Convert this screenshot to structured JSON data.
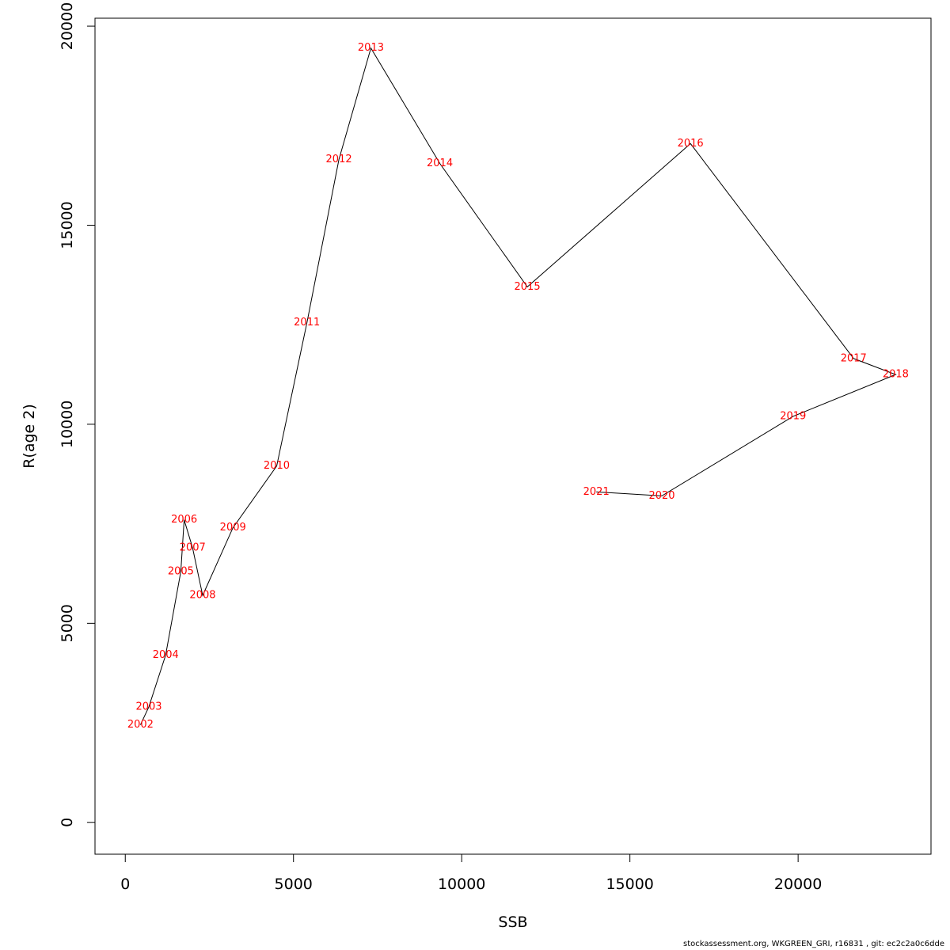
{
  "chart_data": {
    "type": "line",
    "xlabel": "SSB",
    "ylabel": "R(age 2)",
    "xlim": [
      -900,
      23950
    ],
    "ylim": [
      -800,
      20200
    ],
    "x_ticks": [
      0,
      5000,
      10000,
      15000,
      20000
    ],
    "y_ticks": [
      0,
      5000,
      10000,
      15000,
      20000
    ],
    "line_color": "#000000",
    "label_color": "#ff0000",
    "points": [
      {
        "year": "2002",
        "x": 450,
        "y": 2450
      },
      {
        "year": "2003",
        "x": 700,
        "y": 2900
      },
      {
        "year": "2004",
        "x": 1200,
        "y": 4200
      },
      {
        "year": "2005",
        "x": 1650,
        "y": 6300
      },
      {
        "year": "2006",
        "x": 1750,
        "y": 7600
      },
      {
        "year": "2007",
        "x": 2000,
        "y": 6900
      },
      {
        "year": "2008",
        "x": 2300,
        "y": 5700
      },
      {
        "year": "2009",
        "x": 3200,
        "y": 7400
      },
      {
        "year": "2010",
        "x": 4500,
        "y": 8950
      },
      {
        "year": "2011",
        "x": 5400,
        "y": 12550
      },
      {
        "year": "2012",
        "x": 6350,
        "y": 16650
      },
      {
        "year": "2013",
        "x": 7300,
        "y": 19450
      },
      {
        "year": "2014",
        "x": 9350,
        "y": 16550
      },
      {
        "year": "2015",
        "x": 11950,
        "y": 13450
      },
      {
        "year": "2016",
        "x": 16800,
        "y": 17050
      },
      {
        "year": "2017",
        "x": 21650,
        "y": 11650
      },
      {
        "year": "2018",
        "x": 22900,
        "y": 11250
      },
      {
        "year": "2019",
        "x": 19850,
        "y": 10200
      },
      {
        "year": "2020",
        "x": 15950,
        "y": 8200
      },
      {
        "year": "2021",
        "x": 14000,
        "y": 8300
      }
    ]
  },
  "footer_text": "stockassessment.org, WKGREEN_GRI, r16831 , git: ec2c2a0c6dde"
}
